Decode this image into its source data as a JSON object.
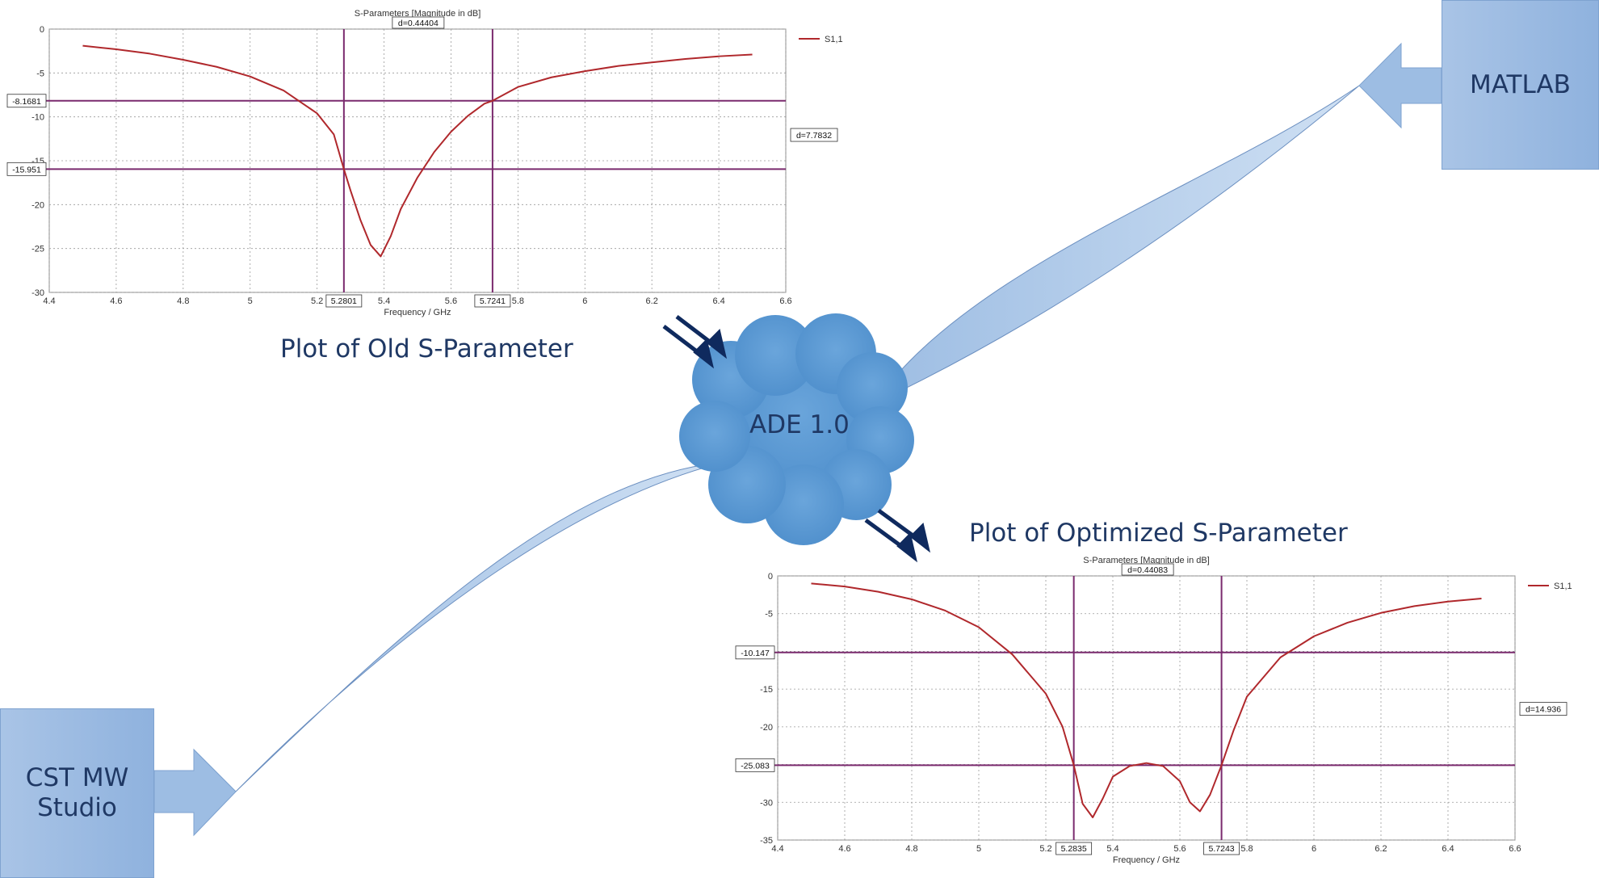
{
  "nodes": {
    "matlab": {
      "label": "MATLAB"
    },
    "cst": {
      "label_line1": "CST MW",
      "label_line2": "Studio"
    },
    "ade": {
      "label": "ADE 1.0"
    }
  },
  "captions": {
    "old_plot": "Plot of Old S-Parameter",
    "optimized_plot": "Plot of Optimized S-Parameter"
  },
  "colors": {
    "curve": "#b0282c",
    "marker_line": "#7a2a6e",
    "cloud": "#5b9bd5",
    "arrow_box": "#9dbde3",
    "text_dark": "#1f3864"
  },
  "chart_data": [
    {
      "type": "line",
      "title": "S-Parameters [Magnitude in dB]",
      "xlabel": "Frequency / GHz",
      "ylabel": "",
      "xlim": [
        4.4,
        6.6
      ],
      "ylim": [
        -30,
        0
      ],
      "xticks": [
        4.4,
        4.6,
        4.8,
        5,
        5.2,
        5.4,
        5.6,
        5.8,
        6,
        6.2,
        6.4,
        6.6
      ],
      "yticks": [
        0,
        -5,
        -10,
        -15,
        -20,
        -25,
        -30
      ],
      "grid": true,
      "legend": "top-right",
      "series": [
        {
          "name": "S1,1",
          "x": [
            4.5,
            4.6,
            4.7,
            4.8,
            4.9,
            5.0,
            5.1,
            5.2,
            5.25,
            5.28,
            5.3,
            5.33,
            5.36,
            5.39,
            5.42,
            5.45,
            5.5,
            5.55,
            5.6,
            5.65,
            5.7,
            5.724,
            5.8,
            5.9,
            6.0,
            6.1,
            6.2,
            6.3,
            6.4,
            6.5
          ],
          "y": [
            -1.9,
            -2.3,
            -2.8,
            -3.5,
            -4.3,
            -5.4,
            -7.0,
            -9.6,
            -12.0,
            -15.95,
            -18.4,
            -21.8,
            -24.6,
            -25.9,
            -23.6,
            -20.5,
            -16.9,
            -14.0,
            -11.7,
            -9.9,
            -8.5,
            -8.17,
            -6.6,
            -5.5,
            -4.8,
            -4.2,
            -3.8,
            -3.4,
            -3.1,
            -2.9
          ]
        }
      ],
      "markers": {
        "h_values": [
          -8.1681,
          -15.951
        ],
        "v_values": [
          5.2801,
          5.7241
        ],
        "h_labels": [
          "-8.1681",
          "-15.951"
        ],
        "v_labels": [
          "5.2801",
          "5.7241"
        ],
        "top_delta": "d=0.44404",
        "side_delta": "d=7.7832"
      }
    },
    {
      "type": "line",
      "title": "S-Parameters [Magnitude in dB]",
      "xlabel": "Frequency / GHz",
      "ylabel": "",
      "xlim": [
        4.4,
        6.6
      ],
      "ylim": [
        -35,
        0
      ],
      "xticks": [
        4.4,
        4.6,
        4.8,
        5,
        5.2,
        5.4,
        5.6,
        5.8,
        6,
        6.2,
        6.4,
        6.6
      ],
      "yticks": [
        0,
        -5,
        -10,
        -15,
        -20,
        -25,
        -30,
        -35
      ],
      "grid": true,
      "legend": "top-right",
      "series": [
        {
          "name": "S1,1",
          "x": [
            4.5,
            4.6,
            4.7,
            4.8,
            4.9,
            5.0,
            5.1,
            5.2,
            5.25,
            5.2835,
            5.31,
            5.34,
            5.37,
            5.4,
            5.45,
            5.5,
            5.55,
            5.6,
            5.63,
            5.66,
            5.69,
            5.7243,
            5.76,
            5.8,
            5.9,
            6.0,
            6.1,
            6.2,
            6.3,
            6.4,
            6.5
          ],
          "y": [
            -1.0,
            -1.4,
            -2.1,
            -3.1,
            -4.6,
            -6.8,
            -10.4,
            -15.6,
            -20.0,
            -25.08,
            -30.2,
            -32.0,
            -29.5,
            -26.6,
            -25.2,
            -24.8,
            -25.2,
            -27.2,
            -30.0,
            -31.2,
            -29.0,
            -25.08,
            -20.5,
            -16.0,
            -10.8,
            -8.0,
            -6.2,
            -4.9,
            -4.0,
            -3.4,
            -3.0
          ]
        }
      ],
      "markers": {
        "h_values": [
          -10.147,
          -25.083
        ],
        "v_values": [
          5.2835,
          5.7243
        ],
        "h_labels": [
          "-10.147",
          "-25.083"
        ],
        "v_labels": [
          "5.2835",
          "5.7243"
        ],
        "top_delta": "d=0.44083",
        "side_delta": "d=14.936"
      }
    }
  ]
}
